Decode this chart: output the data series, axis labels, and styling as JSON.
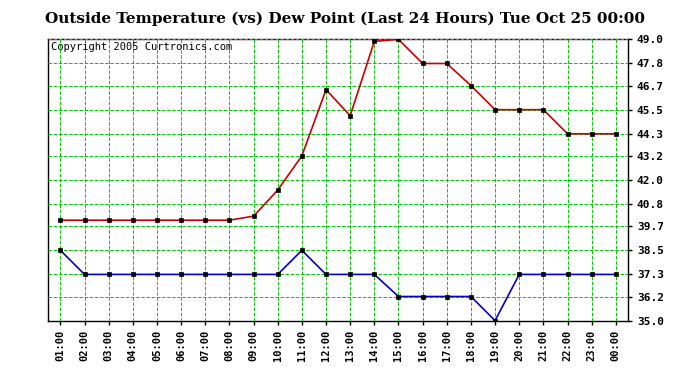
{
  "title": "Outside Temperature (vs) Dew Point (Last 24 Hours) Tue Oct 25 00:00",
  "copyright": "Copyright 2005 Curtronics.com",
  "x_labels": [
    "01:00",
    "02:00",
    "03:00",
    "04:00",
    "05:00",
    "06:00",
    "07:00",
    "08:00",
    "09:00",
    "10:00",
    "11:00",
    "12:00",
    "13:00",
    "14:00",
    "15:00",
    "16:00",
    "17:00",
    "18:00",
    "19:00",
    "20:00",
    "21:00",
    "22:00",
    "23:00",
    "00:00"
  ],
  "red_data": [
    40.0,
    40.0,
    40.0,
    40.0,
    40.0,
    40.0,
    40.0,
    40.0,
    40.2,
    41.5,
    43.2,
    46.5,
    45.2,
    48.9,
    49.0,
    47.8,
    47.8,
    46.7,
    45.5,
    45.5,
    45.5,
    44.3,
    44.3,
    44.3
  ],
  "blue_data": [
    38.5,
    37.3,
    37.3,
    37.3,
    37.3,
    37.3,
    37.3,
    37.3,
    37.3,
    37.3,
    38.5,
    37.3,
    37.3,
    37.3,
    36.2,
    36.2,
    36.2,
    36.2,
    35.0,
    37.3,
    37.3,
    37.3,
    37.3,
    37.3
  ],
  "red_color": "#cc0000",
  "blue_color": "#0000cc",
  "bg_color": "#ffffff",
  "grid_color": "#00cc00",
  "plot_bg": "#ffffff",
  "ylim_min": 35.0,
  "ylim_max": 49.0,
  "yticks": [
    35.0,
    36.2,
    37.3,
    38.5,
    39.7,
    40.8,
    42.0,
    43.2,
    44.3,
    45.5,
    46.7,
    47.8,
    49.0
  ],
  "title_fontsize": 11,
  "copyright_fontsize": 7.5,
  "tick_fontsize": 7.5,
  "ytick_fontsize": 8.0
}
